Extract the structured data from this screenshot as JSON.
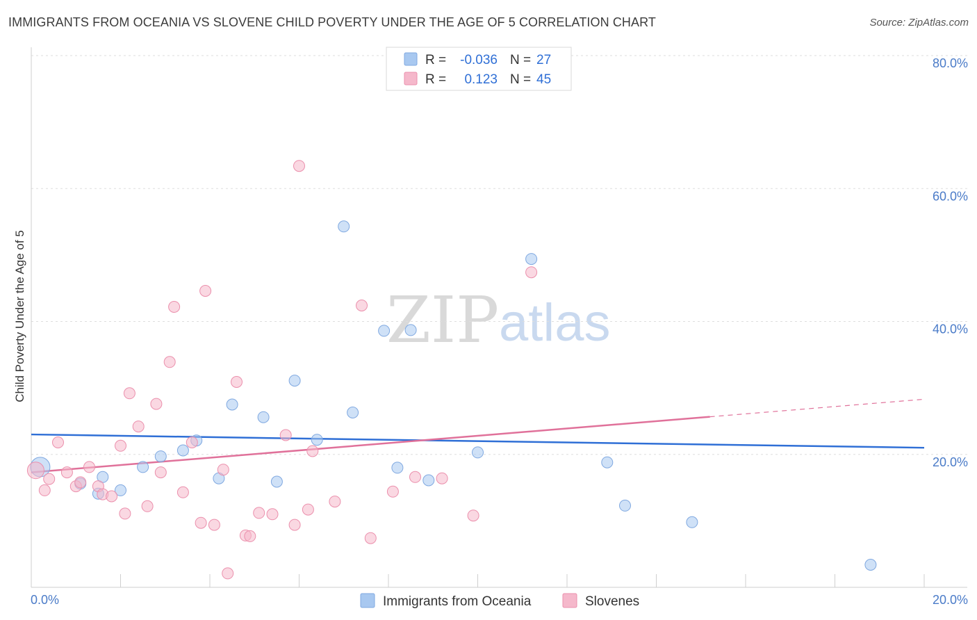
{
  "header": {
    "title": "IMMIGRANTS FROM OCEANIA VS SLOVENE CHILD POVERTY UNDER THE AGE OF 5 CORRELATION CHART",
    "source": "Source: ZipAtlas.com"
  },
  "watermark": {
    "zip": "ZIP",
    "atlas": "atlas"
  },
  "legend": {
    "rows": [
      {
        "r_label": "R = ",
        "r_value": "-0.036",
        "n_label": "N = ",
        "n_value": "27",
        "color": "#a8c8f0"
      },
      {
        "r_label": "R = ",
        "r_value": "0.123",
        "n_label": "N = ",
        "n_value": "45",
        "color": "#f5b8cb"
      }
    ]
  },
  "bottom_legend": {
    "items": [
      {
        "label": "Immigrants from Oceania",
        "color": "#a8c8f0"
      },
      {
        "label": "Slovenes",
        "color": "#f5b8cb"
      }
    ]
  },
  "chart_data": {
    "type": "scatter",
    "ylabel": "Child Poverty Under the Age of 5",
    "xlim": [
      0,
      20
    ],
    "ylim": [
      0,
      80
    ],
    "x_tick_labels": [
      {
        "value": 0,
        "label": "0.0%"
      },
      {
        "value": 20,
        "label": "20.0%"
      }
    ],
    "y_tick_labels": [
      {
        "value": 20,
        "label": "20.0%"
      },
      {
        "value": 40,
        "label": "40.0%"
      },
      {
        "value": 60,
        "label": "60.0%"
      },
      {
        "value": 80,
        "label": "80.0%"
      }
    ],
    "grid": true,
    "legend_position": "top-center",
    "series": [
      {
        "name": "Immigrants from Oceania",
        "color": "#a8c8f0",
        "stroke": "#7fa8e0",
        "line_color": "#2f6fd6",
        "trend": {
          "x0": 0,
          "y0": 23.0,
          "x1": 20,
          "y1": 21.0,
          "dashed_from": null
        },
        "points": [
          [
            0.2,
            18.1,
            14
          ],
          [
            1.1,
            15.6,
            8
          ],
          [
            1.5,
            14.1,
            8
          ],
          [
            1.6,
            16.6,
            8
          ],
          [
            2.0,
            14.6,
            8
          ],
          [
            2.5,
            18.1,
            8
          ],
          [
            2.9,
            19.7,
            8
          ],
          [
            3.4,
            20.6,
            8
          ],
          [
            3.7,
            22.1,
            8
          ],
          [
            4.2,
            16.4,
            8
          ],
          [
            4.5,
            27.5,
            8
          ],
          [
            5.2,
            25.6,
            8
          ],
          [
            5.5,
            15.9,
            8
          ],
          [
            5.9,
            31.1,
            8
          ],
          [
            6.4,
            22.2,
            8
          ],
          [
            7.0,
            54.3,
            8
          ],
          [
            7.2,
            26.3,
            8
          ],
          [
            7.9,
            38.6,
            8
          ],
          [
            8.2,
            18.0,
            8
          ],
          [
            8.5,
            38.7,
            8
          ],
          [
            8.9,
            16.1,
            8
          ],
          [
            10.0,
            20.3,
            8
          ],
          [
            11.2,
            49.4,
            8
          ],
          [
            12.9,
            18.8,
            8
          ],
          [
            13.3,
            12.3,
            8
          ],
          [
            14.8,
            9.8,
            8
          ],
          [
            18.8,
            3.4,
            8
          ]
        ]
      },
      {
        "name": "Slovenes",
        "color": "#f5b8cb",
        "stroke": "#eb8fac",
        "line_color": "#e0719a",
        "trend": {
          "x0": 0,
          "y0": 17.3,
          "x1": 20,
          "y1": 28.3,
          "dashed_from": 15.2
        },
        "points": [
          [
            0.1,
            17.6,
            12
          ],
          [
            0.3,
            14.6,
            8
          ],
          [
            0.4,
            16.3,
            8
          ],
          [
            0.6,
            21.8,
            8
          ],
          [
            0.8,
            17.3,
            8
          ],
          [
            1.0,
            15.2,
            8
          ],
          [
            1.1,
            15.8,
            8
          ],
          [
            1.3,
            18.1,
            8
          ],
          [
            1.5,
            15.2,
            8
          ],
          [
            1.6,
            14.0,
            8
          ],
          [
            1.8,
            13.7,
            8
          ],
          [
            2.0,
            21.3,
            8
          ],
          [
            2.1,
            11.1,
            8
          ],
          [
            2.2,
            29.2,
            8
          ],
          [
            2.4,
            24.2,
            8
          ],
          [
            2.6,
            12.2,
            8
          ],
          [
            2.8,
            27.6,
            8
          ],
          [
            2.9,
            17.3,
            8
          ],
          [
            3.1,
            33.9,
            8
          ],
          [
            3.2,
            42.2,
            8
          ],
          [
            3.4,
            14.3,
            8
          ],
          [
            3.6,
            21.8,
            8
          ],
          [
            3.8,
            9.7,
            8
          ],
          [
            3.9,
            44.6,
            8
          ],
          [
            4.1,
            9.4,
            8
          ],
          [
            4.3,
            17.7,
            8
          ],
          [
            4.4,
            2.1,
            8
          ],
          [
            4.6,
            30.9,
            8
          ],
          [
            4.8,
            7.8,
            8
          ],
          [
            4.9,
            7.7,
            8
          ],
          [
            5.1,
            11.2,
            8
          ],
          [
            5.4,
            11.0,
            8
          ],
          [
            5.7,
            22.9,
            8
          ],
          [
            5.9,
            9.4,
            8
          ],
          [
            6.2,
            11.7,
            8
          ],
          [
            6.3,
            20.5,
            8
          ],
          [
            6.0,
            63.4,
            8
          ],
          [
            6.8,
            12.9,
            8
          ],
          [
            7.4,
            42.4,
            8
          ],
          [
            7.6,
            7.4,
            8
          ],
          [
            8.1,
            14.4,
            8
          ],
          [
            8.6,
            16.6,
            8
          ],
          [
            9.2,
            16.4,
            8
          ],
          [
            9.9,
            10.8,
            8
          ],
          [
            11.2,
            47.4,
            8
          ]
        ]
      }
    ]
  }
}
